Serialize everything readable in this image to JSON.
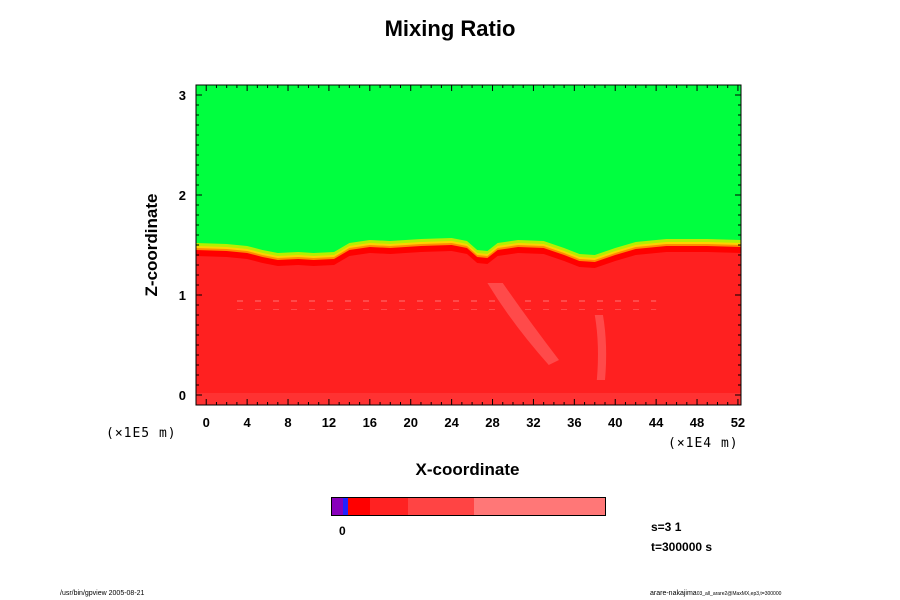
{
  "chart_data": {
    "type": "heatmap",
    "title": "Mixing Ratio",
    "xlabel": "X-coordinate",
    "ylabel": "Z-coordinate",
    "x_scale_label": "(×1E4 m)",
    "y_scale_label": "(×1E5 m)",
    "x_ticks": [
      "0",
      "4",
      "8",
      "12",
      "16",
      "20",
      "24",
      "28",
      "32",
      "36",
      "40",
      "44",
      "48",
      "52"
    ],
    "y_ticks": [
      "0",
      "1",
      "2",
      "3"
    ],
    "xlim": [
      -1,
      52.3
    ],
    "ylim": [
      -0.1,
      3.1
    ],
    "regions": [
      {
        "name": "upper",
        "color": "#00ff3f",
        "z_range": [
          1.45,
          3.1
        ]
      },
      {
        "name": "lower",
        "color": "#ff0000",
        "z_range": [
          -0.1,
          1.4
        ]
      }
    ],
    "interface_z": [
      [
        -1,
        1.45
      ],
      [
        2,
        1.44
      ],
      [
        4,
        1.42
      ],
      [
        5.5,
        1.38
      ],
      [
        7,
        1.35
      ],
      [
        9,
        1.36
      ],
      [
        10.5,
        1.35
      ],
      [
        12.5,
        1.36
      ],
      [
        14,
        1.45
      ],
      [
        16,
        1.48
      ],
      [
        18,
        1.47
      ],
      [
        21,
        1.49
      ],
      [
        24,
        1.5
      ],
      [
        25.5,
        1.47
      ],
      [
        26.5,
        1.38
      ],
      [
        27.5,
        1.37
      ],
      [
        28.5,
        1.45
      ],
      [
        30.5,
        1.48
      ],
      [
        33,
        1.47
      ],
      [
        35,
        1.4
      ],
      [
        36.5,
        1.34
      ],
      [
        38,
        1.33
      ],
      [
        40,
        1.4
      ],
      [
        42,
        1.46
      ],
      [
        45,
        1.49
      ],
      [
        49,
        1.49
      ],
      [
        52.3,
        1.48
      ]
    ],
    "colorbar": {
      "label": "0",
      "colors": [
        "#8800bb",
        "#2222ff",
        "#ff0000",
        "#ff2222",
        "#ff4444",
        "#ff7777",
        "#ff9999"
      ],
      "stops": [
        0,
        0.04,
        0.06,
        0.14,
        0.28,
        0.52,
        1.0
      ]
    }
  },
  "annotations": {
    "step": "s=3 1",
    "time": "t=300000 s"
  },
  "footer": {
    "left": "/usr/bin/gpview 2005-08-21",
    "right_main": "arare-nakajima",
    "right_small": "03_all_arare2@MaxMX,ep3,t=300000"
  }
}
